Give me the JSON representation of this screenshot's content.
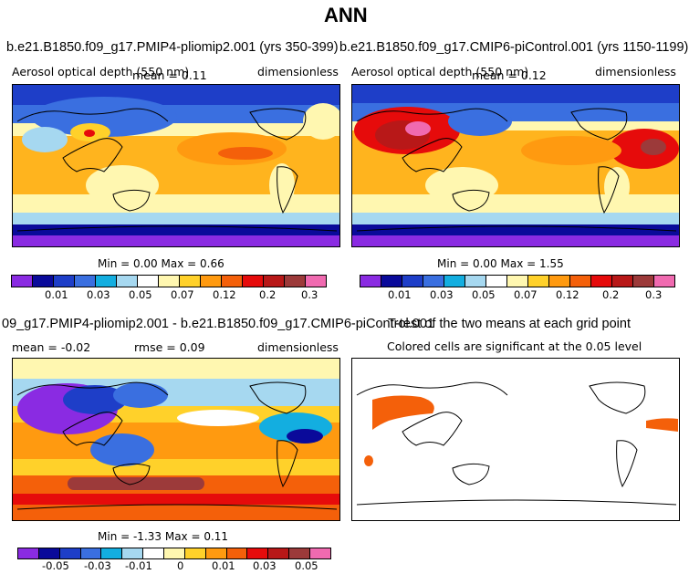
{
  "figure_title": "ANN",
  "panels": {
    "p1": {
      "case": "b.e21.B1850.f09_g17.PMIP4-pliomip2.001 (yrs 350-399)",
      "field": "Aerosol optical depth (550 nm)",
      "mean": "mean =    0.11",
      "units": "dimensionless",
      "minmax": "Min =    0.00  Max =    0.66"
    },
    "p2": {
      "case": "b.e21.B1850.f09_g17.CMIP6-piControl.001 (yrs 1150-1199)",
      "field": "Aerosol optical depth (550 nm)",
      "mean": "mean =    0.12",
      "units": "dimensionless",
      "minmax": "Min =    0.00  Max =    1.55"
    },
    "p3": {
      "case": "09_g17.PMIP4-pliomip2.001 - b.e21.B1850.f09_g17.CMIP6-piControl.001",
      "mean": "mean =   -0.02",
      "rmse": "rmse =    0.09",
      "units": "dimensionless",
      "minmax": "Min =   -1.33  Max =    0.11"
    },
    "p4": {
      "title": "T-test of the two means at each grid point",
      "subtitle": "Colored cells are significant at the 0.05 level"
    }
  },
  "colorbars": {
    "abs_colors": [
      "#8a2be2",
      "#0a0a9a",
      "#1e3ec8",
      "#3a6fe0",
      "#13aee0",
      "#a6d8f0",
      "#ffffff",
      "#fff7b0",
      "#ffd12a",
      "#ff9a10",
      "#f4600a",
      "#e60b0b",
      "#b81818",
      "#9c3a3a",
      "#f06ab0"
    ],
    "abs_ticks": [
      "0.01",
      "0.03",
      "0.05",
      "0.07",
      "0.12",
      "0.2",
      "0.3"
    ],
    "diff_colors": [
      "#8a2be2",
      "#0a0a9a",
      "#1e3ec8",
      "#3a6fe0",
      "#13aee0",
      "#a6d8f0",
      "#ffffff",
      "#fff7b0",
      "#ffd12a",
      "#ff9a10",
      "#f4600a",
      "#e60b0b",
      "#b81818",
      "#9c3a3a",
      "#f06ab0"
    ],
    "diff_ticks": [
      "-0.05",
      "-0.03",
      "-0.01",
      "0",
      "0.01",
      "0.03",
      "0.05"
    ]
  },
  "chart_data": [
    {
      "type": "heatmap",
      "title": "b.e21.B1850.f09_g17.PMIP4-pliomip2.001 (yrs 350-399)",
      "variable": "Aerosol optical depth (550 nm)",
      "units": "dimensionless",
      "mean": 0.11,
      "min": 0.0,
      "max": 0.66,
      "contour_levels": [
        0.01,
        0.02,
        0.03,
        0.04,
        0.05,
        0.06,
        0.07,
        0.1,
        0.12,
        0.15,
        0.2,
        0.25,
        0.3,
        0.4
      ],
      "tick_labels": [
        "0.01",
        "0.03",
        "0.05",
        "0.07",
        "0.12",
        "0.2",
        "0.3"
      ]
    },
    {
      "type": "heatmap",
      "title": "b.e21.B1850.f09_g17.CMIP6-piControl.001 (yrs 1150-1199)",
      "variable": "Aerosol optical depth (550 nm)",
      "units": "dimensionless",
      "mean": 0.12,
      "min": 0.0,
      "max": 1.55,
      "contour_levels": [
        0.01,
        0.02,
        0.03,
        0.04,
        0.05,
        0.06,
        0.07,
        0.1,
        0.12,
        0.15,
        0.2,
        0.25,
        0.3,
        0.4
      ],
      "tick_labels": [
        "0.01",
        "0.03",
        "0.05",
        "0.07",
        "0.12",
        "0.2",
        "0.3"
      ]
    },
    {
      "type": "heatmap",
      "title": "PMIP4-pliomip2.001 - CMIP6-piControl.001",
      "units": "dimensionless",
      "mean": -0.02,
      "rmse": 0.09,
      "min": -1.33,
      "max": 0.11,
      "tick_labels": [
        "-0.05",
        "-0.03",
        "-0.01",
        "0",
        "0.01",
        "0.03",
        "0.05"
      ]
    },
    {
      "type": "heatmap",
      "title": "T-test of the two means at each grid point",
      "subtitle": "Colored cells are significant at the 0.05 level",
      "significance_level": 0.05
    }
  ]
}
